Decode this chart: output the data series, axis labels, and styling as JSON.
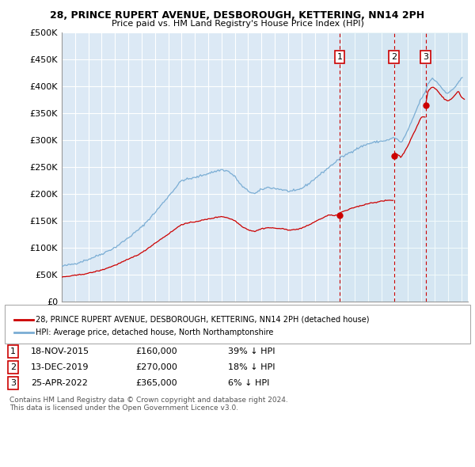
{
  "title1": "28, PRINCE RUPERT AVENUE, DESBOROUGH, KETTERING, NN14 2PH",
  "title2": "Price paid vs. HM Land Registry's House Price Index (HPI)",
  "ylabel_ticks": [
    "£0",
    "£50K",
    "£100K",
    "£150K",
    "£200K",
    "£250K",
    "£300K",
    "£350K",
    "£400K",
    "£450K",
    "£500K"
  ],
  "ytick_values": [
    0,
    50000,
    100000,
    150000,
    200000,
    250000,
    300000,
    350000,
    400000,
    450000,
    500000
  ],
  "ylim": [
    0,
    500000
  ],
  "xlim_start": 1995.0,
  "xlim_end": 2025.5,
  "plot_bg_color": "#dce9f5",
  "shade_bg_color": "#dce9f5",
  "grid_color": "#cccccc",
  "hpi_color": "#7aadd4",
  "price_color": "#cc0000",
  "vline_color": "#cc0000",
  "sales": [
    {
      "date_num": 2015.88,
      "price": 160000,
      "label": "1"
    },
    {
      "date_num": 2019.95,
      "price": 270000,
      "label": "2"
    },
    {
      "date_num": 2022.32,
      "price": 365000,
      "label": "3"
    }
  ],
  "legend_line1": "28, PRINCE RUPERT AVENUE, DESBOROUGH, KETTERING, NN14 2PH (detached house)",
  "legend_line2": "HPI: Average price, detached house, North Northamptonshire",
  "table_entries": [
    {
      "num": "1",
      "date": "18-NOV-2015",
      "price": "£160,000",
      "change": "39% ↓ HPI"
    },
    {
      "num": "2",
      "date": "13-DEC-2019",
      "price": "£270,000",
      "change": "18% ↓ HPI"
    },
    {
      "num": "3",
      "date": "25-APR-2022",
      "price": "£365,000",
      "change": "6% ↓ HPI"
    }
  ],
  "footnote1": "Contains HM Land Registry data © Crown copyright and database right 2024.",
  "footnote2": "This data is licensed under the Open Government Licence v3.0."
}
